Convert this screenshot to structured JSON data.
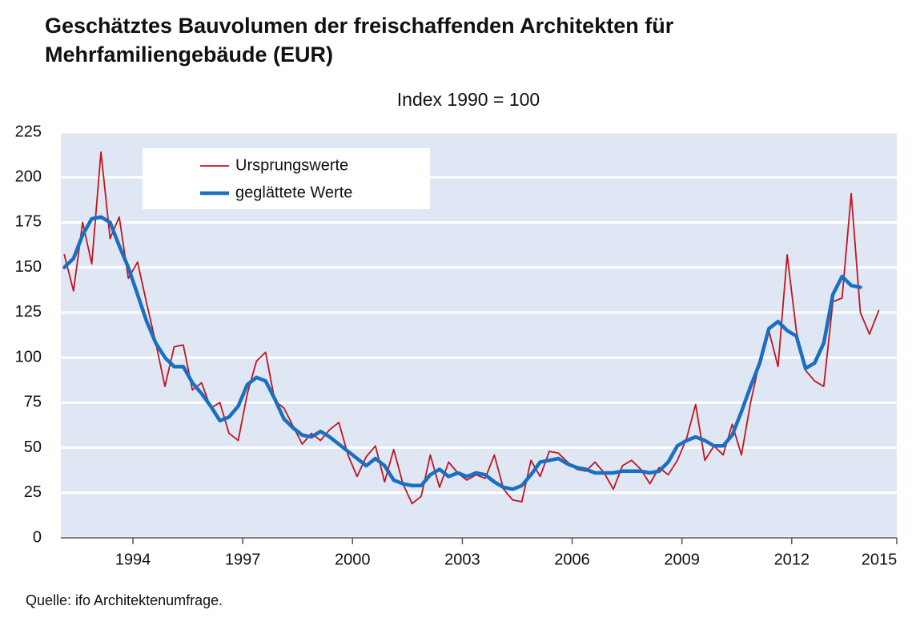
{
  "chart_data": {
    "type": "line",
    "title": "Geschätztes Bauvolumen der freischaffenden Architekten für Mehrfamiliengebäude (EUR)",
    "subtitle": "Index 1990 = 100",
    "source": "Quelle: ifo Architektenumfrage.",
    "x": [
      1992.125,
      1992.375,
      1992.625,
      1992.875,
      1993.125,
      1993.375,
      1993.625,
      1993.875,
      1994.125,
      1994.375,
      1994.625,
      1994.875,
      1995.125,
      1995.375,
      1995.625,
      1995.875,
      1996.125,
      1996.375,
      1996.625,
      1996.875,
      1997.125,
      1997.375,
      1997.625,
      1997.875,
      1998.125,
      1998.375,
      1998.625,
      1998.875,
      1999.125,
      1999.375,
      1999.625,
      1999.875,
      2000.125,
      2000.375,
      2000.625,
      2000.875,
      2001.125,
      2001.375,
      2001.625,
      2001.875,
      2002.125,
      2002.375,
      2002.625,
      2002.875,
      2003.125,
      2003.375,
      2003.625,
      2003.875,
      2004.125,
      2004.375,
      2004.625,
      2004.875,
      2005.125,
      2005.375,
      2005.625,
      2005.875,
      2006.125,
      2006.375,
      2006.625,
      2006.875,
      2007.125,
      2007.375,
      2007.625,
      2007.875,
      2008.125,
      2008.375,
      2008.625,
      2008.875,
      2009.125,
      2009.375,
      2009.625,
      2009.875,
      2010.125,
      2010.375,
      2010.625,
      2010.875,
      2011.125,
      2011.375,
      2011.625,
      2011.875,
      2012.125,
      2012.375,
      2012.625,
      2012.875,
      2013.125,
      2013.375,
      2013.625,
      2013.875,
      2014.125,
      2014.375
    ],
    "series": [
      {
        "name": "Ursprungswerte",
        "color": "#c0161e",
        "width": 1.8,
        "values": [
          157,
          137,
          175,
          152,
          214,
          166,
          178,
          144,
          153,
          130,
          108,
          84,
          106,
          107,
          82,
          86,
          72,
          75,
          58,
          54,
          80,
          98,
          103,
          76,
          72,
          62,
          52,
          58,
          54,
          60,
          64,
          46,
          34,
          45,
          51,
          31,
          49,
          30,
          19,
          23,
          46,
          28,
          42,
          36,
          32,
          35,
          33,
          46,
          27,
          21,
          20,
          43,
          34,
          48,
          47,
          42,
          38,
          37,
          42,
          36,
          27,
          40,
          43,
          38,
          30,
          39,
          35,
          43,
          55,
          74,
          43,
          51,
          46,
          63,
          46,
          75,
          98,
          115,
          95,
          157,
          115,
          93,
          87,
          84,
          131,
          133,
          191,
          125,
          113,
          126
        ]
      },
      {
        "name": "geglättete Werte",
        "color": "#1a6fc0",
        "width": 4.5,
        "values": [
          150,
          155,
          168,
          177,
          178,
          175,
          162,
          150,
          135,
          120,
          108,
          100,
          95,
          95,
          86,
          80,
          73,
          65,
          67,
          73,
          85,
          89,
          87,
          77,
          66,
          61,
          57,
          56,
          59,
          56,
          52,
          48,
          44,
          40,
          44,
          40,
          32,
          30,
          29,
          29,
          35,
          38,
          34,
          36,
          34,
          36,
          35,
          31,
          28,
          27,
          29,
          35,
          42,
          43,
          44,
          41,
          39,
          38,
          36,
          36,
          36,
          37,
          37,
          37,
          36,
          37,
          42,
          51,
          54,
          56,
          54,
          51,
          51,
          57,
          70,
          84,
          97,
          116,
          120,
          115,
          112,
          94,
          97,
          108,
          135,
          145,
          140,
          139,
          null,
          null
        ]
      }
    ],
    "xlim": [
      1992.03,
      2014.87
    ],
    "xticks": [
      1994,
      1997,
      2000,
      2003,
      2006,
      2009,
      2012,
      2015
    ],
    "ylim": [
      0,
      225
    ],
    "yticks": [
      0,
      25,
      50,
      75,
      100,
      125,
      150,
      175,
      200,
      225
    ],
    "grid": true,
    "background": "#dfe6f4"
  }
}
